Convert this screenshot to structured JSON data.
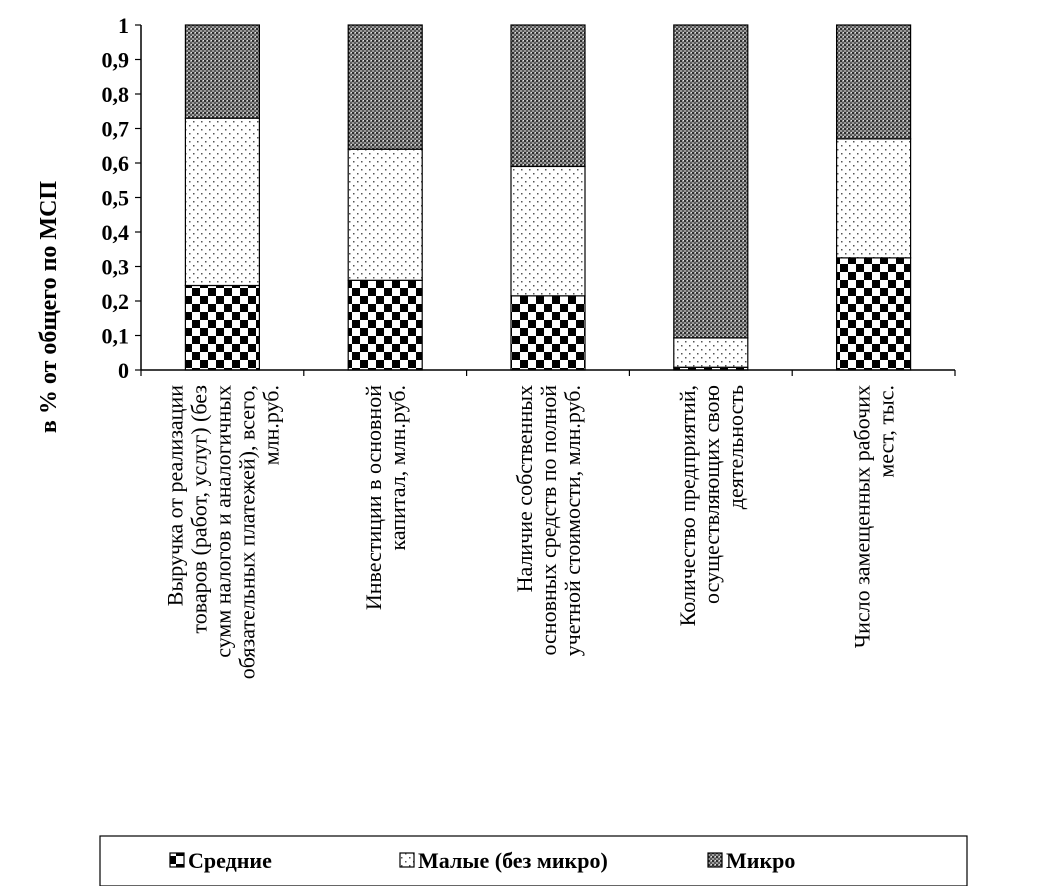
{
  "chart_data": {
    "type": "bar",
    "stacked": true,
    "ylabel": "в  % от общего по МСП",
    "ylim": [
      0,
      1
    ],
    "yticks": [
      "0",
      "0,1",
      "0,2",
      "0,3",
      "0,4",
      "0,5",
      "0,6",
      "0,7",
      "0,8",
      "0,9",
      "1"
    ],
    "grid": "none",
    "legend": "bottom",
    "categories": [
      [
        "Выручка от реализации",
        "товаров (работ, услуг) (без",
        "сумм налогов и аналогичных",
        "обязательных платежей), всего,",
        "млн.руб."
      ],
      [
        "Инвестиции в основной",
        "капитал, млн.руб."
      ],
      [
        "Наличие собственных",
        "основных средств по полной",
        "учетной стоимости, млн.руб."
      ],
      [
        "Количество предприятий,",
        "осуществляющих свою",
        "деятельность"
      ],
      [
        "Число замещенных рабочих",
        "мест, тыс."
      ]
    ],
    "series": [
      {
        "name": "Средние",
        "pattern": "checker",
        "values": [
          0.245,
          0.26,
          0.215,
          0.008,
          0.325
        ]
      },
      {
        "name": "Малые (без микро)",
        "pattern": "dots",
        "values": [
          0.485,
          0.38,
          0.375,
          0.085,
          0.345
        ]
      },
      {
        "name": "Микро",
        "pattern": "dense",
        "values": [
          0.27,
          0.36,
          0.41,
          0.907,
          0.33
        ]
      }
    ]
  }
}
